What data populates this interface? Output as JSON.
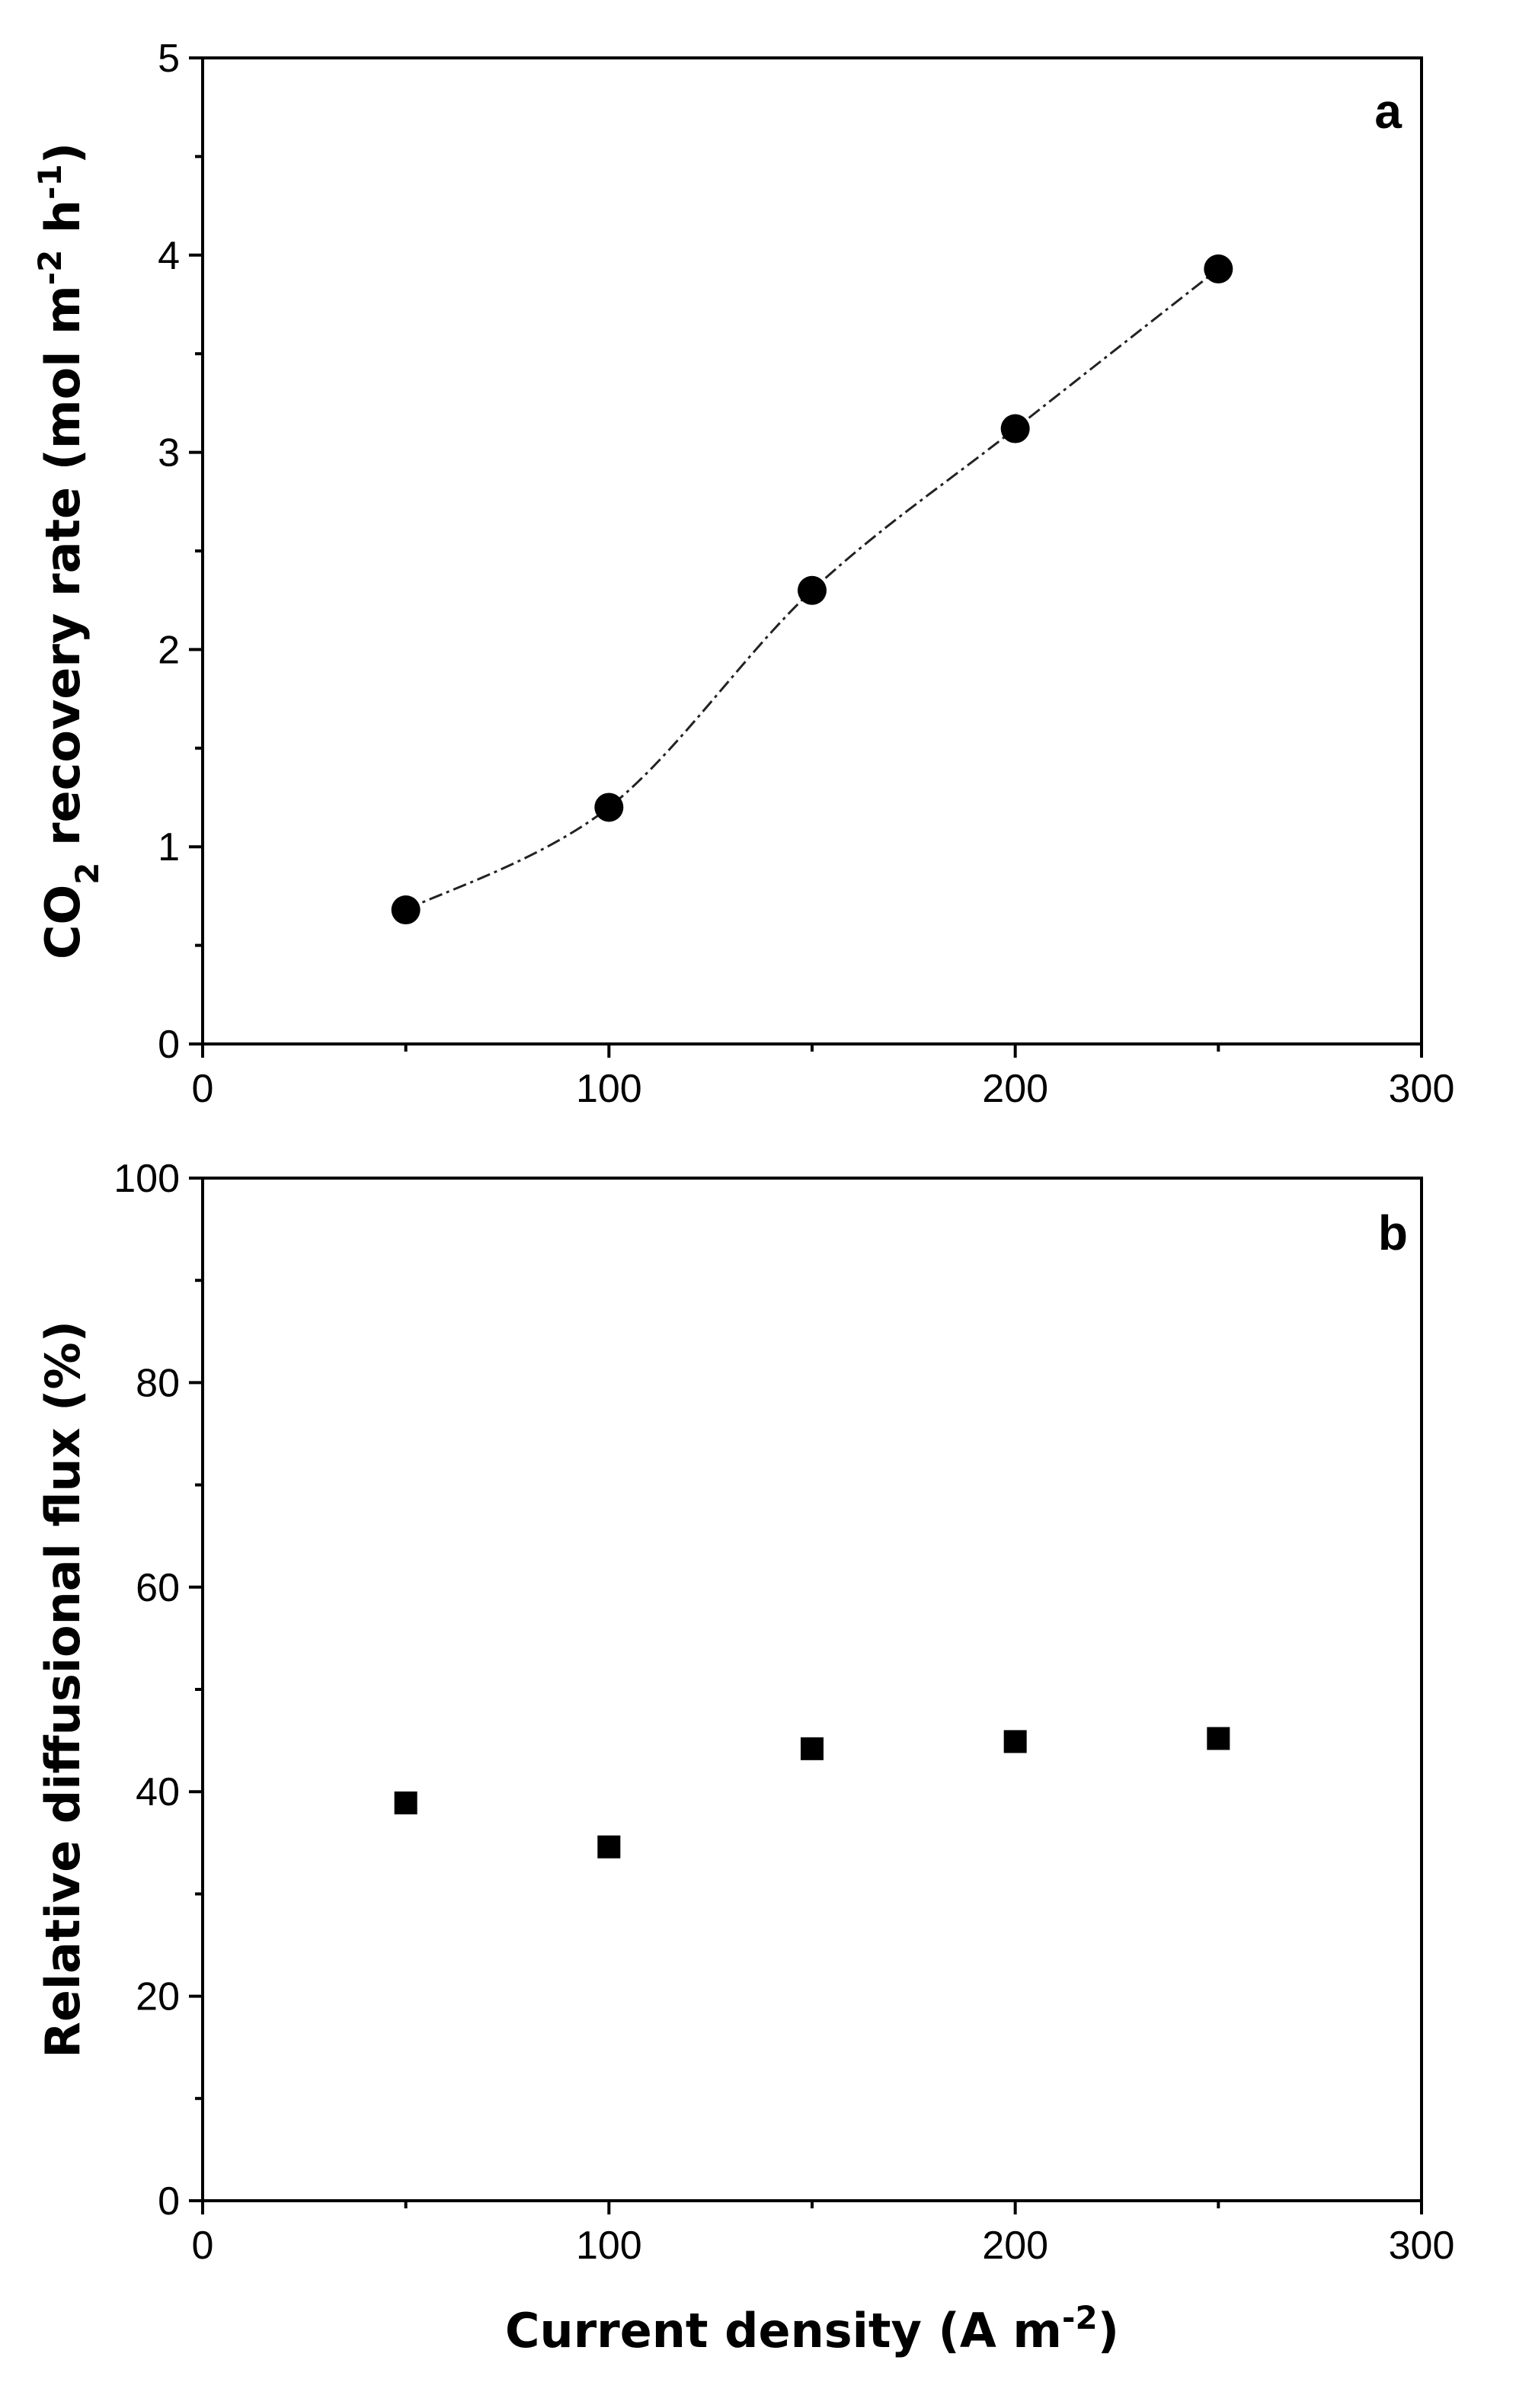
{
  "chart_data": [
    {
      "panel_label": "a",
      "type": "scatter",
      "marker": "circle",
      "trend_line": "smooth dash-dot",
      "x": [
        50,
        100,
        150,
        200,
        250
      ],
      "y": [
        0.68,
        1.2,
        2.3,
        3.12,
        3.93
      ],
      "xlim": [
        0,
        300
      ],
      "ylim": [
        0,
        5
      ],
      "xticks": [
        "0",
        "100",
        "200",
        "300"
      ],
      "yticks": [
        "0",
        "1",
        "2",
        "3",
        "4",
        "5"
      ],
      "xlabel": "",
      "ylabel": {
        "prefix": "CO",
        "subscript": "2",
        "middle": " recovery rate (mol m",
        "sup1": "-2",
        "middle2": " h",
        "sup2": "-1",
        "suffix": ")"
      }
    },
    {
      "panel_label": "b",
      "type": "scatter",
      "marker": "square",
      "x": [
        50,
        100,
        150,
        200,
        250
      ],
      "y": [
        38.9,
        34.6,
        44.2,
        44.9,
        45.2
      ],
      "xlim": [
        0,
        300
      ],
      "ylim": [
        0,
        100
      ],
      "xticks": [
        "0",
        "100",
        "200",
        "300"
      ],
      "yticks": [
        "0",
        "20",
        "40",
        "60",
        "80",
        "100"
      ],
      "xlabel": {
        "main": "Current density (A m",
        "sup": "-2",
        "suffix": ")"
      },
      "ylabel": "Relative diffusional flux (%)"
    }
  ]
}
